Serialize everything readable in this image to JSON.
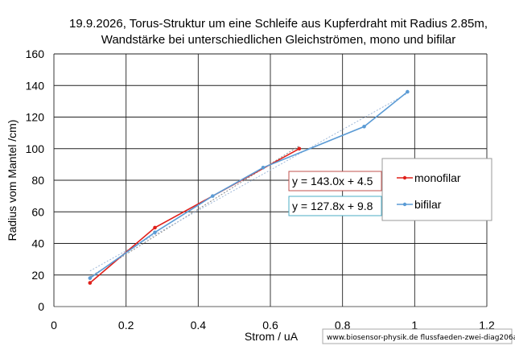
{
  "chart_data": {
    "type": "line",
    "title": [
      "19.9.2026, Torus-Struktur um eine Schleife aus Kupferdraht mit Radius 2.85m,",
      "Wandstärke bei unterschiedlichen Gleichströmen, mono und bifilar"
    ],
    "xlabel": "Strom / uA",
    "ylabel": "Radius vom Mantel /cm)",
    "xlim": [
      0,
      1.2
    ],
    "ylim": [
      0,
      160
    ],
    "xticks": [
      "0",
      "0.2",
      "0.4",
      "0.6",
      "0.8",
      "1",
      "1.2"
    ],
    "yticks": [
      "0",
      "20",
      "40",
      "60",
      "80",
      "100",
      "120",
      "140",
      "160"
    ],
    "grid": true,
    "legend_position": "right",
    "series": [
      {
        "name": "monofilar",
        "color": "#e0201a",
        "x": [
          0.1,
          0.28,
          0.68
        ],
        "y": [
          15,
          50,
          100
        ],
        "trendline": {
          "label": "y = 143.0x + 4.5",
          "slope": 143.0,
          "intercept": 4.5,
          "box_color": "#c0504d"
        }
      },
      {
        "name": "bifilar",
        "color": "#5b9bd5",
        "x": [
          0.1,
          0.28,
          0.44,
          0.58,
          0.86,
          0.98
        ],
        "y": [
          18,
          47,
          70,
          88,
          114,
          136
        ],
        "trendline": {
          "label": "y = 127.8x + 9.8",
          "slope": 127.8,
          "intercept": 9.8,
          "box_color": "#4bacc6"
        }
      }
    ]
  },
  "credit": "www.biosensor-physik.de  flussfaeden-zwei-diag206a"
}
